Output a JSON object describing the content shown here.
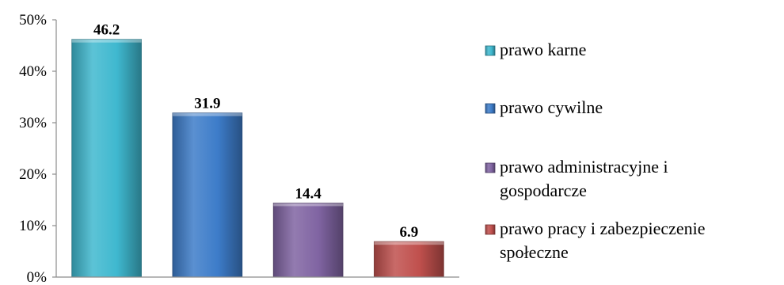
{
  "chart_data": {
    "type": "bar",
    "categories": [
      "prawo karne",
      "prawo cywilne",
      "prawo administracyjne i gospodarcze",
      "prawo pracy i zabezpieczenie społeczne"
    ],
    "values": [
      46.2,
      31.9,
      14.4,
      6.9
    ],
    "value_labels": [
      "46.2",
      "31.9",
      "14.4",
      "6.9"
    ],
    "ylim": [
      0,
      50
    ],
    "y_ticks": [
      {
        "value": 0,
        "label": "0%"
      },
      {
        "value": 10,
        "label": "10%"
      },
      {
        "value": 20,
        "label": "20%"
      },
      {
        "value": 30,
        "label": "30%"
      },
      {
        "value": 40,
        "label": "40%"
      },
      {
        "value": 50,
        "label": "50%"
      }
    ],
    "legend": {
      "placement": "right",
      "entries": [
        {
          "lines": [
            "prawo karne"
          ],
          "color": "#3fb8cf"
        },
        {
          "lines": [
            "prawo cywilne"
          ],
          "color": "#3d7cc9"
        },
        {
          "lines": [
            "prawo administracyjne i",
            "gospodarcze"
          ],
          "color": "#8064a2"
        },
        {
          "lines": [
            "prawo pracy i zabezpieczenie",
            "społeczne"
          ],
          "color": "#c0504d"
        }
      ]
    },
    "colors": [
      "#3fb8cf",
      "#3d7cc9",
      "#8064a2",
      "#c0504d"
    ],
    "grid": false
  }
}
